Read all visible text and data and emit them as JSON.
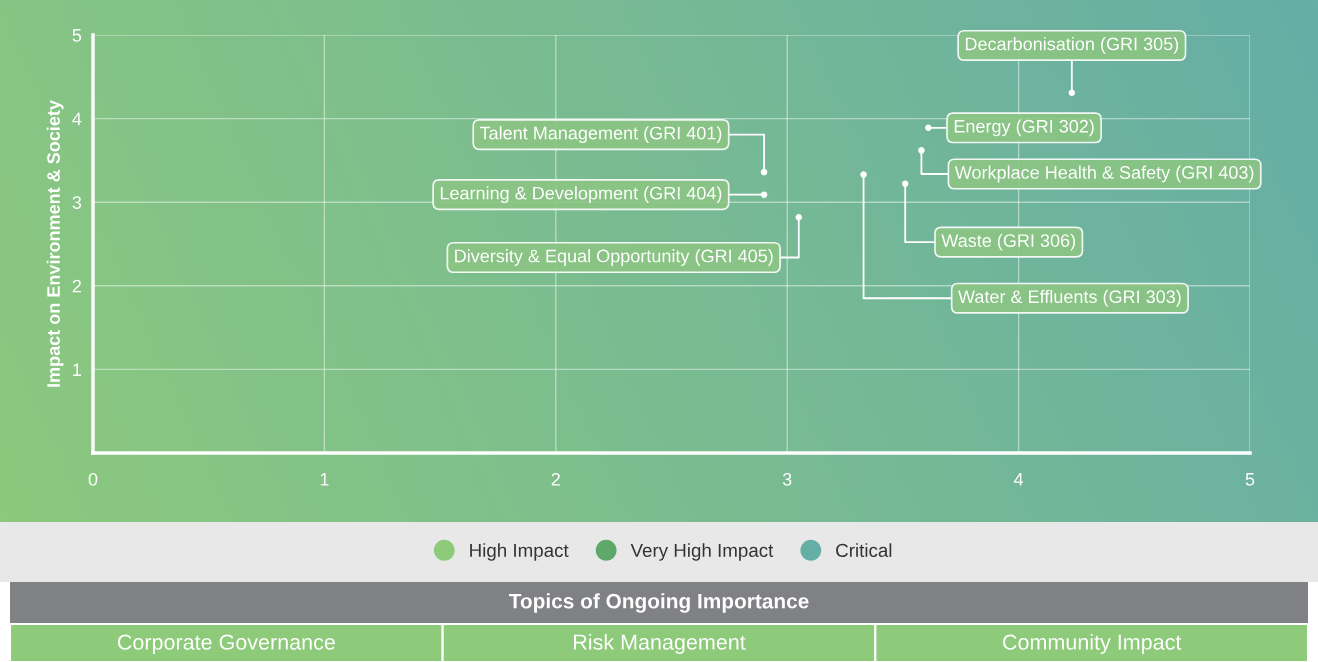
{
  "chart_data": {
    "type": "scatter",
    "ylabel": "Impact on Environment & Society",
    "xlim": [
      0,
      5
    ],
    "xticks": [
      0,
      1,
      2,
      3,
      4,
      5
    ],
    "ylim": [
      0,
      5
    ],
    "yticks": [
      1,
      2,
      3,
      4,
      5
    ],
    "grid": true,
    "marker": "circle",
    "legend": "bottom",
    "series": [
      {
        "color": "#ffffff",
        "x": [
          4.23,
          3.61,
          3.58,
          2.9,
          2.9,
          3.05,
          3.51,
          3.33
        ],
        "values": [
          4.31,
          3.89,
          3.62,
          3.36,
          3.09,
          2.82,
          3.22,
          3.33
        ]
      },
      {
        "name": "High Impact",
        "color": "#8dcb7b"
      },
      {
        "name": "Very High Impact",
        "color": "#5fa86c"
      },
      {
        "name": "Critical",
        "color": "#66afa7"
      }
    ],
    "annotations": [
      {
        "text": "Decarbonisation (GRI 305)",
        "x": 4.23,
        "y": 4.31
      },
      {
        "text": "Energy (GRI 302)",
        "x": 3.61,
        "y": 3.89
      },
      {
        "text": "Workplace Health & Safety (GRI 403)",
        "x": 3.58,
        "y": 3.62
      },
      {
        "text": "Talent Management (GRI 401)",
        "x": 2.9,
        "y": 3.36
      },
      {
        "text": "Learning & Development (GRI 404)",
        "x": 2.9,
        "y": 3.09
      },
      {
        "text": "Diversity & Equal Opportunity (GRI 405)",
        "x": 3.05,
        "y": 2.82
      },
      {
        "text": "Waste (GRI 306)",
        "x": 3.51,
        "y": 3.22
      },
      {
        "text": "Water & Effluents (GRI 303)",
        "x": 3.33,
        "y": 3.33
      },
      "Topics of Ongoing Importance",
      "Corporate Governance",
      "Risk Management",
      "Community Impact"
    ]
  }
}
